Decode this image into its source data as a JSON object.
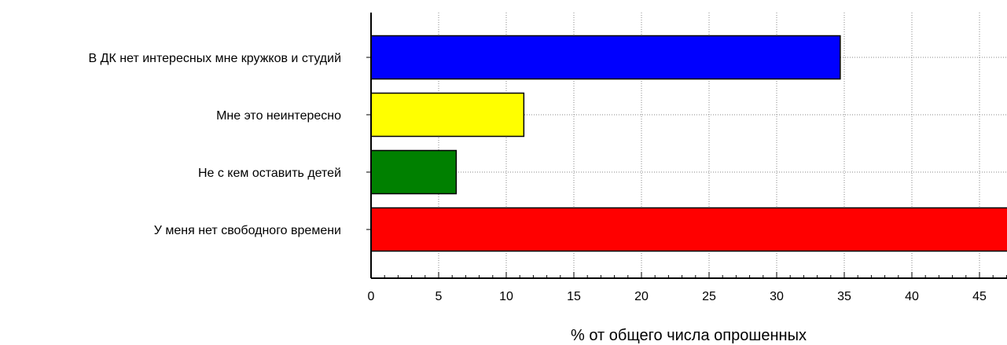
{
  "chart_data": {
    "type": "bar",
    "orientation": "horizontal",
    "categories": [
      "В ДК нет интересных мне кружков и студий",
      "Мне это неинтересно",
      "Не с кем оставить детей",
      "У меня нет свободного времени"
    ],
    "values": [
      34.7,
      11.3,
      6.3,
      47.5
    ],
    "colors": [
      "#0000ff",
      "#ffff00",
      "#008000",
      "#ff0000"
    ],
    "xlabel": "% от общего числа опрошенных",
    "xlim": [
      0,
      47
    ],
    "xticks": [
      0,
      5,
      10,
      15,
      20,
      25,
      30,
      35,
      40,
      45
    ],
    "grid": true
  }
}
